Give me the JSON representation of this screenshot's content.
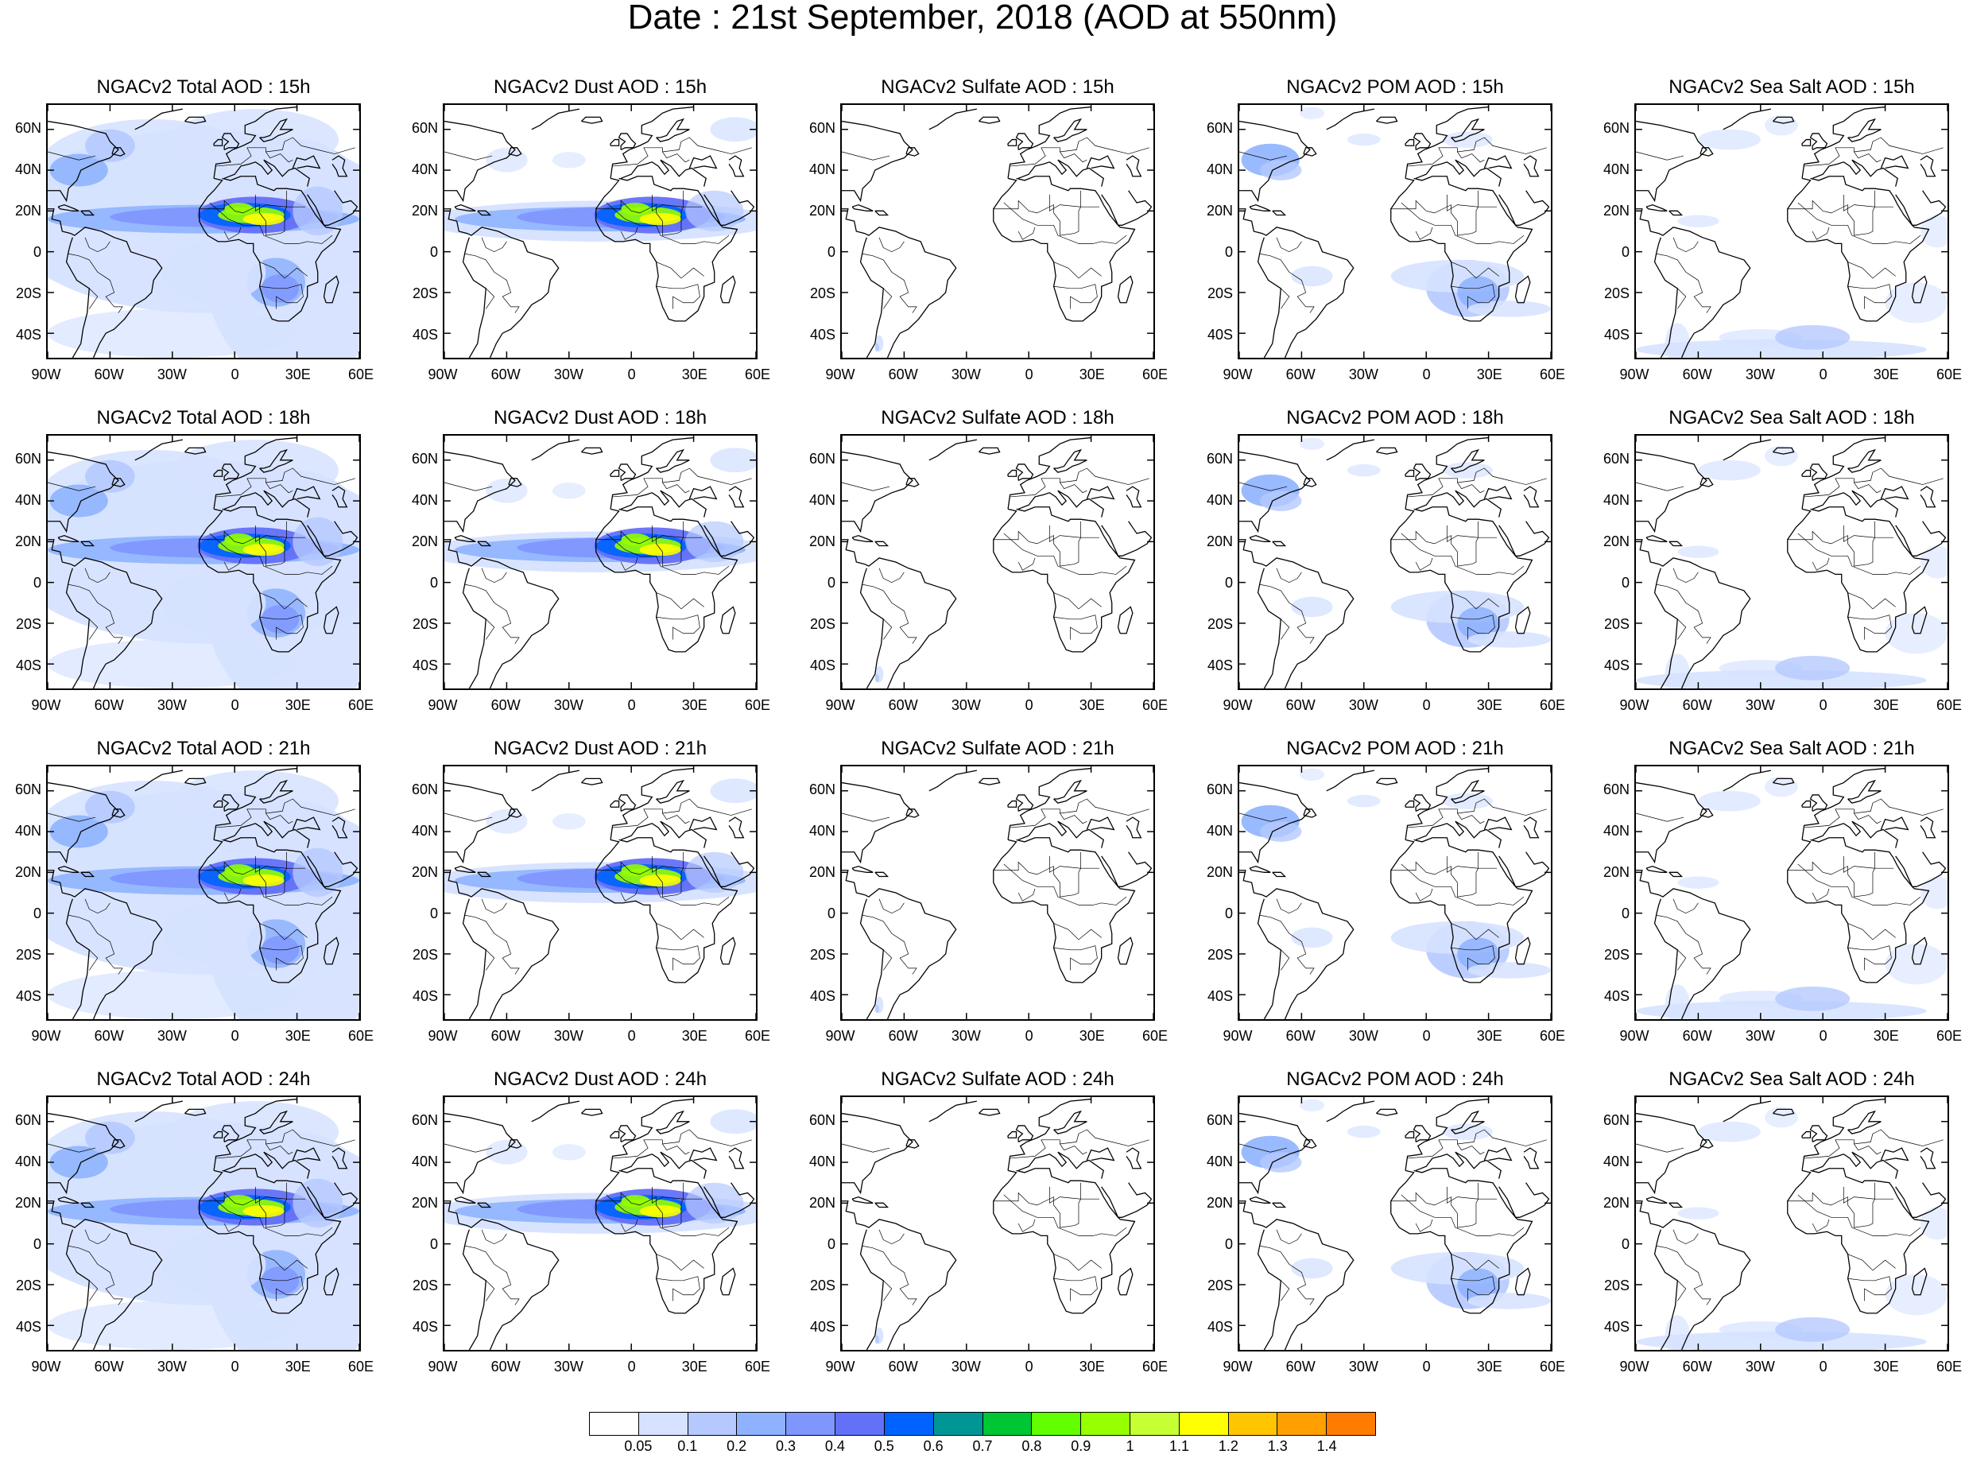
{
  "title": "Date : 21st September, 2018 (AOD at 550nm)",
  "panels": [
    [
      "NGACv2 Total AOD : 15h",
      "NGACv2 Dust AOD : 15h",
      "NGACv2 Sulfate AOD : 15h",
      "NGACv2 POM AOD : 15h",
      "NGACv2 Sea Salt AOD : 15h"
    ],
    [
      "NGACv2 Total AOD : 18h",
      "NGACv2 Dust AOD : 18h",
      "NGACv2 Sulfate AOD : 18h",
      "NGACv2 POM AOD : 18h",
      "NGACv2 Sea Salt AOD : 18h"
    ],
    [
      "NGACv2 Total AOD : 21h",
      "NGACv2 Dust AOD : 21h",
      "NGACv2 Sulfate AOD : 21h",
      "NGACv2 POM AOD : 21h",
      "NGACv2 Sea Salt AOD : 21h"
    ],
    [
      "NGACv2 Total AOD : 24h",
      "NGACv2 Dust AOD : 24h",
      "NGACv2 Sulfate AOD : 24h",
      "NGACv2 POM AOD : 24h",
      "NGACv2 Sea Salt  AOD : 24h"
    ]
  ],
  "lat_labels": [
    "60N",
    "40N",
    "20N",
    "0",
    "20S",
    "40S"
  ],
  "lon_labels": [
    "90W",
    "60W",
    "30W",
    "0",
    "30E",
    "60E"
  ],
  "colorbar": {
    "labels": [
      "0.05",
      "0.1",
      "0.2",
      "0.3",
      "0.4",
      "0.5",
      "0.6",
      "0.7",
      "0.8",
      "0.9",
      "1",
      "1.1",
      "1.2",
      "1.3",
      "1.4"
    ],
    "colors": [
      "#ffffff",
      "#d6e2ff",
      "#b5c9ff",
      "#8eb2ff",
      "#7f96ff",
      "#6370f8",
      "#0063ff",
      "#009696",
      "#00c633",
      "#63ff00",
      "#96ff00",
      "#c6ff33",
      "#ffff00",
      "#ffc600",
      "#ffa000",
      "#ff7c00",
      "#ff1900"
    ]
  }
}
